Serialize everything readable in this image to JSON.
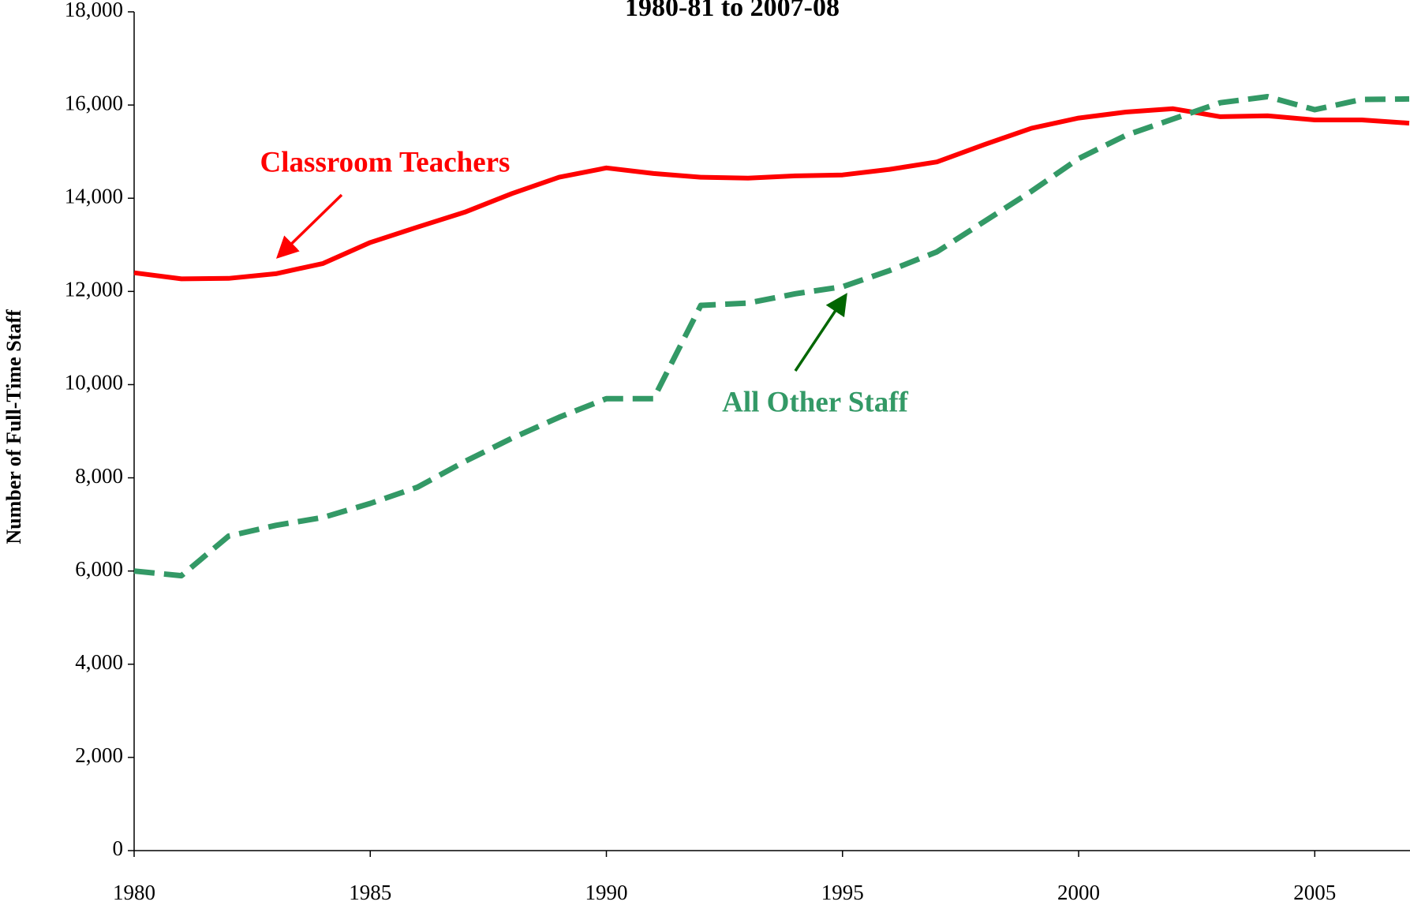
{
  "chart_data": {
    "type": "line",
    "title": "1980-81 to 2007-08",
    "ylabel": "Number of Full-Time Staff",
    "x": [
      1980,
      1981,
      1982,
      1983,
      1984,
      1985,
      1986,
      1987,
      1988,
      1989,
      1990,
      1991,
      1992,
      1993,
      1994,
      1995,
      1996,
      1997,
      1998,
      1999,
      2000,
      2001,
      2002,
      2003,
      2004,
      2005,
      2006,
      2007
    ],
    "series": [
      {
        "name": "Classroom Teachers",
        "color": "#ff0000",
        "dashed": false,
        "values": [
          12400,
          12270,
          12280,
          12380,
          12600,
          13050,
          13380,
          13700,
          14100,
          14450,
          14650,
          14530,
          14450,
          14430,
          14480,
          14500,
          14620,
          14780,
          15150,
          15500,
          15720,
          15850,
          15920,
          15750,
          15770,
          15680,
          15680,
          15610
        ]
      },
      {
        "name": "All Other Staff",
        "color": "#339966",
        "dashed": true,
        "values": [
          6000,
          5900,
          6750,
          6980,
          7150,
          7450,
          7800,
          8350,
          8850,
          9300,
          9700,
          9700,
          11700,
          11750,
          11950,
          12100,
          12450,
          12850,
          13500,
          14150,
          14850,
          15350,
          15700,
          16050,
          16180,
          15900,
          16120,
          16130
        ]
      }
    ],
    "xlim": [
      1980,
      2007
    ],
    "xticks": [
      1980,
      1985,
      1990,
      1995,
      2000,
      2005
    ],
    "ylim": [
      0,
      18000
    ],
    "yticks": [
      0,
      {
        "value": 2000,
        "label": "2,000"
      },
      {
        "value": 4000,
        "label": "4,000"
      },
      {
        "value": 6000,
        "label": "6,000"
      },
      {
        "value": 8000,
        "label": "8,000"
      },
      {
        "value": 10000,
        "label": "10,000"
      },
      {
        "value": 12000,
        "label": "12,000"
      },
      {
        "value": 14000,
        "label": "14,000"
      },
      {
        "value": 16000,
        "label": "16,000"
      },
      {
        "value": 18000,
        "label": "18,000"
      }
    ],
    "grid": false
  }
}
